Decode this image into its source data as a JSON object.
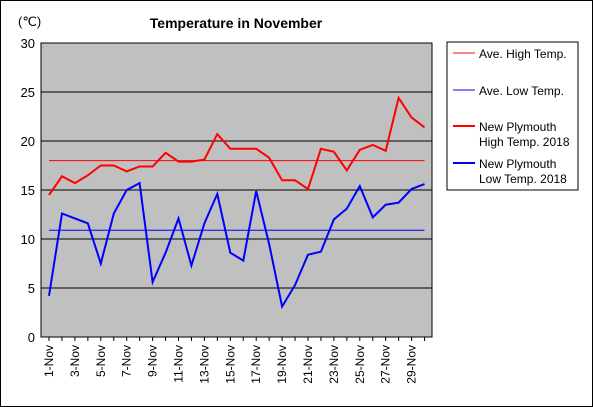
{
  "chart_data": {
    "type": "line",
    "title": "Temperature in November",
    "unit_label": "(℃)",
    "xlabel": "",
    "ylabel": "",
    "ylim": [
      0,
      30
    ],
    "y_ticks": [
      "0",
      "5",
      "10",
      "15",
      "20",
      "25",
      "30"
    ],
    "categories": [
      "1-Nov",
      "2-Nov",
      "3-Nov",
      "4-Nov",
      "5-Nov",
      "6-Nov",
      "7-Nov",
      "8-Nov",
      "9-Nov",
      "10-Nov",
      "11-Nov",
      "12-Nov",
      "13-Nov",
      "14-Nov",
      "15-Nov",
      "16-Nov",
      "17-Nov",
      "18-Nov",
      "19-Nov",
      "20-Nov",
      "21-Nov",
      "22-Nov",
      "23-Nov",
      "24-Nov",
      "25-Nov",
      "26-Nov",
      "27-Nov",
      "28-Nov",
      "29-Nov",
      "30-Nov"
    ],
    "tick_labels": [
      "1-Nov",
      "3-Nov",
      "5-Nov",
      "7-Nov",
      "9-Nov",
      "11-Nov",
      "13-Nov",
      "15-Nov",
      "17-Nov",
      "19-Nov",
      "21-Nov",
      "23-Nov",
      "25-Nov",
      "27-Nov",
      "29-Nov"
    ],
    "grid": true,
    "legend_position": "right",
    "plot_background": "#c0c0c0",
    "series": [
      {
        "name": "Ave. High Temp.",
        "color": "#ff0000",
        "width": 1,
        "values": [
          18,
          18,
          18,
          18,
          18,
          18,
          18,
          18,
          18,
          18,
          18,
          18,
          18,
          18,
          18,
          18,
          18,
          18,
          18,
          18,
          18,
          18,
          18,
          18,
          18,
          18,
          18,
          18,
          18,
          18
        ]
      },
      {
        "name": "Ave. Low Temp.",
        "color": "#0000ff",
        "width": 1,
        "values": [
          10.9,
          10.9,
          10.9,
          10.9,
          10.9,
          10.9,
          10.9,
          10.9,
          10.9,
          10.9,
          10.9,
          10.9,
          10.9,
          10.9,
          10.9,
          10.9,
          10.9,
          10.9,
          10.9,
          10.9,
          10.9,
          10.9,
          10.9,
          10.9,
          10.9,
          10.9,
          10.9,
          10.9,
          10.9,
          10.9
        ]
      },
      {
        "name": "New Plymouth\nHigh Temp. 2018",
        "color": "#ff0000",
        "width": 2,
        "values": [
          14.5,
          16.4,
          15.7,
          16.5,
          17.5,
          17.5,
          16.9,
          17.4,
          17.4,
          18.8,
          17.9,
          17.9,
          18.1,
          20.7,
          19.2,
          19.2,
          19.2,
          18.3,
          16.0,
          16.0,
          15.1,
          19.2,
          18.9,
          17.0,
          19.1,
          19.6,
          19.0,
          24.4,
          22.4,
          21.4
        ]
      },
      {
        "name": "New Plymouth\nLow Temp. 2018",
        "color": "#0000ff",
        "width": 2,
        "values": [
          4.2,
          12.6,
          12.1,
          11.6,
          7.5,
          12.6,
          15.0,
          15.7,
          5.6,
          8.6,
          12.1,
          7.3,
          11.6,
          14.6,
          8.6,
          7.8,
          14.9,
          9.5,
          3.1,
          5.3,
          8.4,
          8.7,
          12.0,
          13.1,
          15.4,
          12.2,
          13.5,
          13.7,
          15.1,
          15.6
        ]
      }
    ]
  }
}
